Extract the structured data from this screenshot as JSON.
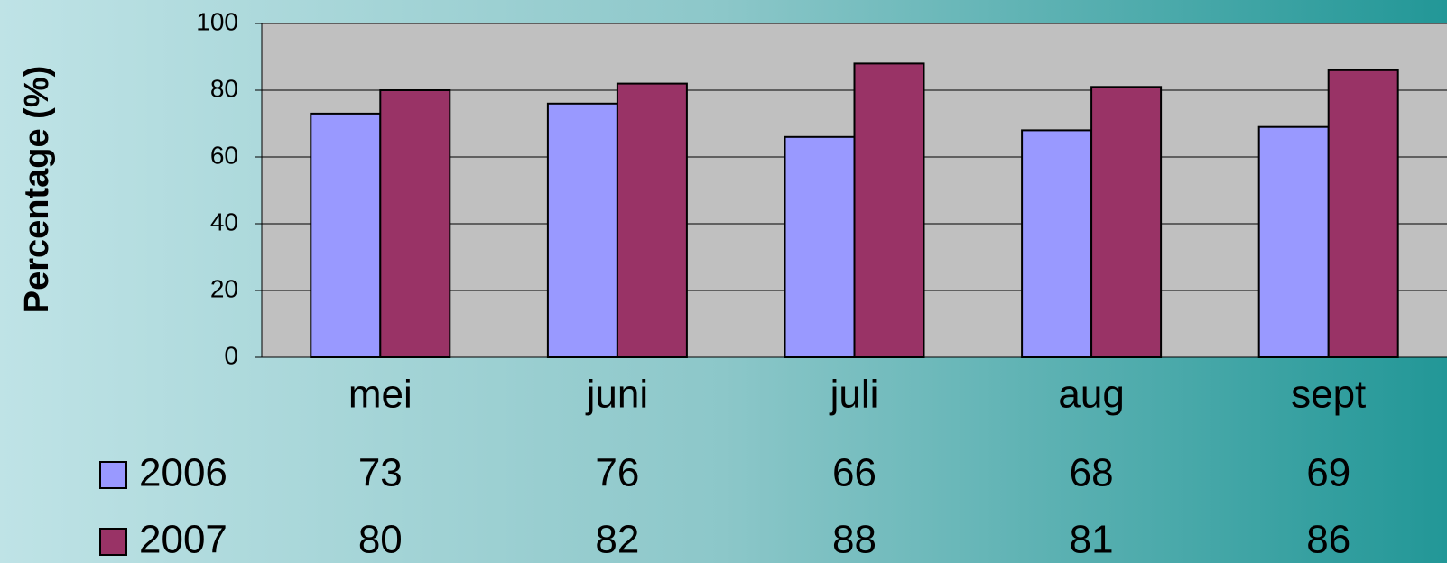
{
  "chart_data": {
    "type": "bar",
    "y_label": "Percentage (%)",
    "categories": [
      "mei",
      "juni",
      "juli",
      "aug",
      "sept"
    ],
    "series": [
      {
        "name": "2006",
        "color": "#9999ff",
        "values": [
          73,
          76,
          66,
          68,
          69
        ]
      },
      {
        "name": "2007",
        "color": "#993366",
        "values": [
          80,
          82,
          88,
          81,
          86
        ]
      }
    ],
    "ylim": [
      0,
      100
    ],
    "yticks": [
      0,
      20,
      40,
      60,
      80,
      100
    ],
    "grid": true,
    "data_table": true
  }
}
